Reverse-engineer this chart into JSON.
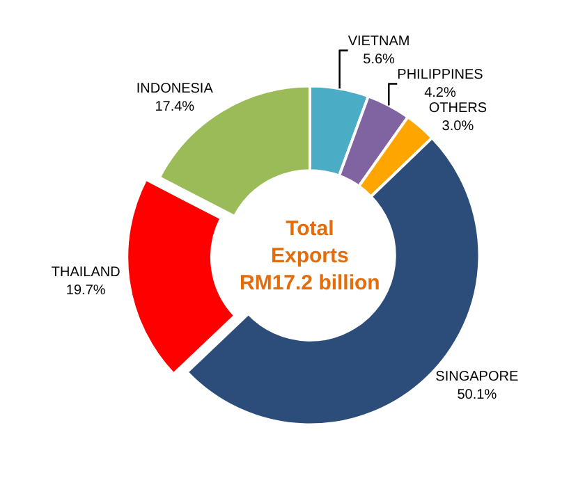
{
  "chart_data": {
    "type": "donut",
    "categories": [
      "VIETNAM",
      "PHILIPPINES",
      "OTHERS",
      "SINGAPORE",
      "THAILAND",
      "INDONESIA"
    ],
    "values": [
      5.6,
      4.2,
      3.0,
      50.1,
      19.7,
      17.4
    ],
    "value_labels": [
      "5.6%",
      "4.2%",
      "3.0%",
      "50.1%",
      "19.7%",
      "17.4%"
    ],
    "colors": [
      "#4bacc6",
      "#8064a2",
      "#ffa500",
      "#2c4d7a",
      "#ff0000",
      "#9bbb59"
    ],
    "annotations": [
      "Total\nExports\nRM17.2 billion"
    ],
    "legend": false
  }
}
